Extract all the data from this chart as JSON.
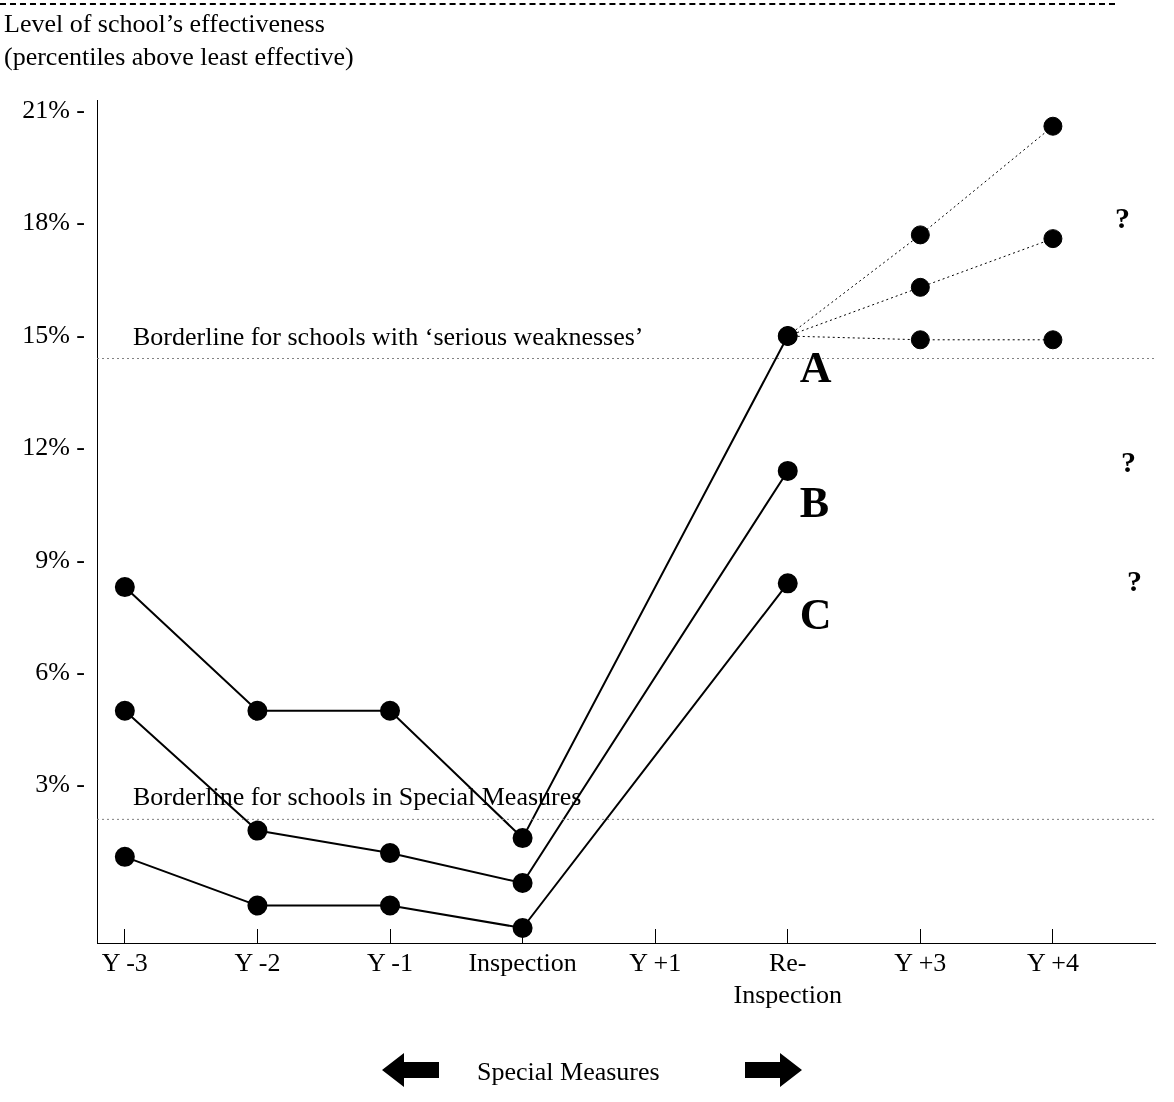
{
  "chart_data": {
    "type": "line",
    "ylabel": "Level of school’s effectiveness\n(percentiles above least effective)",
    "categories": [
      "Y -3",
      "Y -2",
      "Y -1",
      "Inspection",
      "Y +1",
      "Re-\nInspection",
      "Y +3",
      "Y +4"
    ],
    "ylim": [
      -1.2,
      21.3
    ],
    "yticks": [
      {
        "value": 3,
        "label": "3% -"
      },
      {
        "value": 6,
        "label": "6% -"
      },
      {
        "value": 9,
        "label": "9% -"
      },
      {
        "value": 12,
        "label": "12% -"
      },
      {
        "value": 15,
        "label": "15% -"
      },
      {
        "value": 18,
        "label": "18% -"
      },
      {
        "value": 21,
        "label": "21% -"
      }
    ],
    "marker": "circle",
    "line_style": "solid",
    "legend": false,
    "grid": false,
    "series": [
      {
        "name": "A",
        "color": "#000000",
        "values": [
          8.3,
          5.0,
          5.0,
          1.6,
          null,
          15.0,
          null,
          null
        ]
      },
      {
        "name": "B",
        "color": "#000000",
        "values": [
          5.0,
          1.8,
          1.2,
          0.4,
          null,
          11.4,
          null,
          null
        ]
      },
      {
        "name": "C",
        "color": "#000000",
        "values": [
          1.1,
          -0.2,
          -0.2,
          -0.8,
          null,
          8.4,
          null,
          null
        ]
      },
      {
        "color": "#000000",
        "line_style": "dotted",
        "values": [
          null,
          null,
          null,
          null,
          null,
          15.0,
          17.7,
          20.6
        ]
      },
      {
        "color": "#000000",
        "line_style": "dotted",
        "values": [
          null,
          null,
          null,
          null,
          null,
          15.0,
          16.3,
          17.6
        ]
      },
      {
        "color": "#000000",
        "line_style": "dotted",
        "values": [
          null,
          null,
          null,
          null,
          null,
          15.0,
          14.9,
          14.9
        ]
      }
    ],
    "ref_lines": [
      {
        "axis": "y",
        "value": 14.4,
        "label": "Borderline for schools with ‘serious weaknesses’",
        "color": "#808080",
        "line_style": "dotted"
      },
      {
        "axis": "y",
        "value": 2.1,
        "label": "Borderline for schools in Special Measures",
        "color": "#808080",
        "line_style": "dotted"
      }
    ],
    "annotations": [
      "?",
      "?",
      "?",
      "Special Measures"
    ]
  }
}
